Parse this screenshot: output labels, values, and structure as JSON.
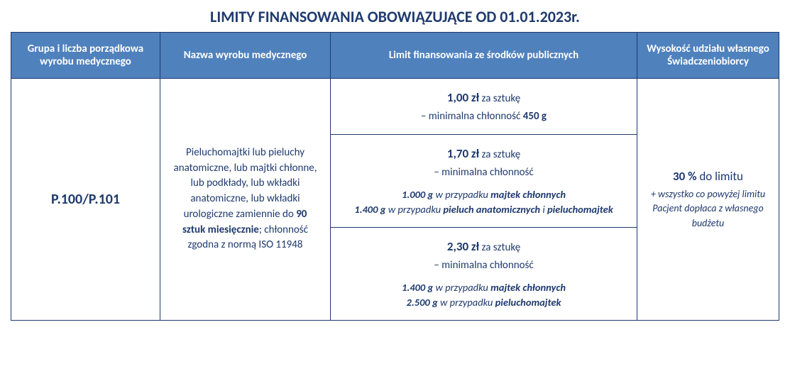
{
  "title": "LIMITY FINANSOWANIA OBOWIĄZUJĄCE OD 01.01.2023r.",
  "headers": {
    "col1": "Grupa i liczba porządkowa wyrobu medycznego",
    "col2": "Nazwa wyrobu medycznego",
    "col3": "Limit finansowania ze środków publicznych",
    "col4": "Wysokość udziału własnego Świadczeniobiorcy"
  },
  "row": {
    "group": "P.100/P.101",
    "product": {
      "p1": "Pieluchomajtki lub pieluchy anatomiczne, lub majtki chłonne, lub podkłady, lub wkładki anatomiczne, lub wkładki urologiczne zamiennie do ",
      "qty": "90 sztuk miesięcznie",
      "p2": "; chłonność zgodna z normą ISO 11948"
    },
    "tiers": [
      {
        "price": "1,00 zł",
        "per": " za sztukę",
        "minabs_prefix": "– minimalna chłonność ",
        "minabs_value": "450 g",
        "details": []
      },
      {
        "price": "1,70 zł",
        "per": " za sztukę",
        "minabs_prefix": "– minimalna chłonność",
        "minabs_value": "",
        "details": [
          {
            "weight": "1.000 g",
            "mid": " w przypadku ",
            "item": "majtek chłonnych"
          },
          {
            "weight": "1.400 g",
            "mid": " w przypadku ",
            "item": "pieluch anatomicznych",
            "suffix": " i ",
            "item2": "pieluchomajtek"
          }
        ]
      },
      {
        "price": "2,30 zł",
        "per": " za sztukę",
        "minabs_prefix": "– minimalna chłonność",
        "minabs_value": "",
        "details": [
          {
            "weight": "1.400 g",
            "mid": " w przypadku ",
            "item": "majtek chłonnych"
          },
          {
            "weight": "2.500 g",
            "mid": " w przypadku ",
            "item": "pieluchomajtek"
          }
        ]
      }
    ],
    "share": {
      "pct": "30 %",
      "label": " do limitu",
      "note": "+ wszystko co powyżej limitu Pacjent dopłaca z własnego budżetu"
    }
  },
  "colors": {
    "header_bg": "#4f81bd",
    "border": "#1f3a6e",
    "text": "#1f3a6e"
  }
}
